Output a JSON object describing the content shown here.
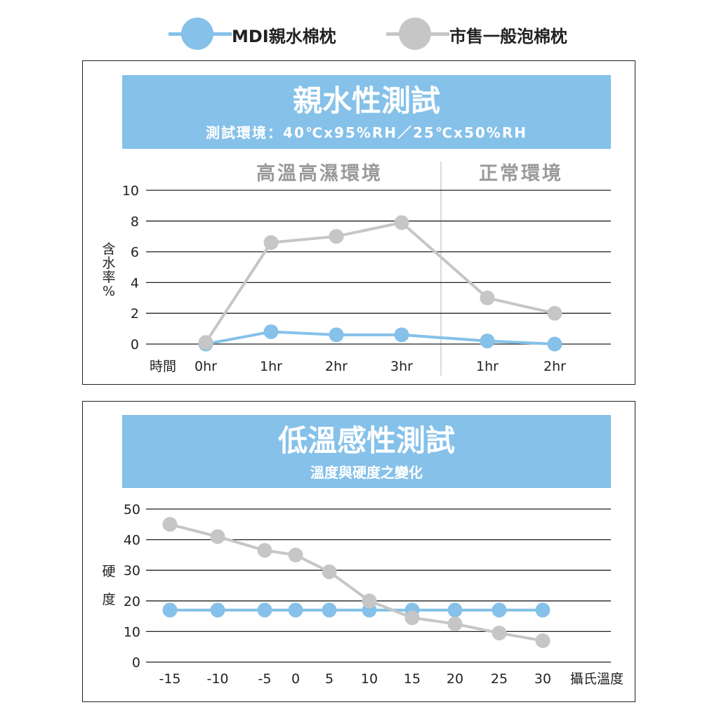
{
  "legend": {
    "items": [
      {
        "label": "MDI親水棉枕",
        "color": "#85c1e9"
      },
      {
        "label": "市售一般泡棉枕",
        "color": "#c6c6c6"
      }
    ]
  },
  "colors": {
    "mdi": "#85c1e9",
    "foam": "#c6c6c6",
    "banner": "#85c1e9"
  },
  "panel1": {
    "title": "親水性測試",
    "subtitle": "測試環境：40℃x95%RH／25℃x50%RH",
    "region_left": "高溫高濕環境",
    "region_right": "正常環境",
    "ylabel": "含水率%",
    "xlabel": "時間"
  },
  "panel2": {
    "title": "低溫感性測試",
    "subtitle": "溫度與硬度之變化",
    "ylabel": "硬度",
    "xlabel": "攝氏溫度"
  },
  "chart_data": [
    {
      "type": "line",
      "title": "親水性測試",
      "subtitle": "測試環境：40℃x95%RH／25℃x50%RH",
      "xlabel": "時間",
      "ylabel": "含水率%",
      "categories": [
        "0hr",
        "1hr",
        "2hr",
        "3hr",
        "1hr",
        "2hr"
      ],
      "regions": [
        "高溫高濕環境",
        "正常環境"
      ],
      "ylim": [
        0,
        10
      ],
      "yticks": [
        0,
        2,
        4,
        6,
        8,
        10
      ],
      "grid": true,
      "series": [
        {
          "name": "MDI親水棉枕",
          "color": "#85c1e9",
          "values": [
            0,
            0.8,
            0.6,
            0.6,
            0.2,
            0
          ]
        },
        {
          "name": "市售一般泡棉枕",
          "color": "#c6c6c6",
          "values": [
            0.1,
            6.6,
            7.0,
            7.9,
            3.0,
            2.0
          ]
        }
      ]
    },
    {
      "type": "line",
      "title": "低溫感性測試",
      "subtitle": "溫度與硬度之變化",
      "xlabel": "攝氏溫度",
      "ylabel": "硬度",
      "categories": [
        "-15",
        "-10",
        "-5",
        "0",
        "5",
        "10",
        "15",
        "20",
        "25",
        "30"
      ],
      "ylim": [
        0,
        50
      ],
      "yticks": [
        0,
        10,
        20,
        30,
        40,
        50
      ],
      "grid": true,
      "series": [
        {
          "name": "MDI親水棉枕",
          "color": "#85c1e9",
          "values": [
            17,
            17,
            17,
            17,
            17,
            17,
            17,
            17,
            17,
            17
          ]
        },
        {
          "name": "市售一般泡棉枕",
          "color": "#c6c6c6",
          "values": [
            45,
            41,
            36.5,
            35,
            29.5,
            20,
            14.5,
            12.5,
            9.5,
            7
          ]
        }
      ]
    }
  ]
}
